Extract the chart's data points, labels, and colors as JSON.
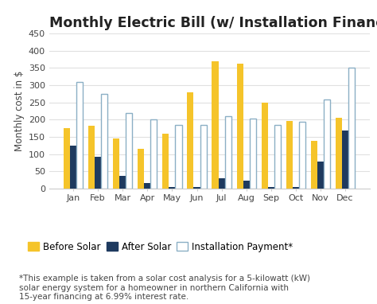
{
  "title": "Monthly Electric Bill (w/ Installation Financing)",
  "ylabel": "Monthly cost in $",
  "months": [
    "Jan",
    "Feb",
    "Mar",
    "Apr",
    "May",
    "Jun",
    "Jul",
    "Aug",
    "Sep",
    "Oct",
    "Nov",
    "Dec"
  ],
  "before_solar": [
    175,
    182,
    145,
    115,
    160,
    280,
    370,
    363,
    250,
    195,
    138,
    205
  ],
  "after_solar": [
    125,
    93,
    37,
    15,
    5,
    5,
    30,
    22,
    5,
    5,
    78,
    168
  ],
  "installation_payment": [
    308,
    275,
    218,
    200,
    185,
    185,
    210,
    203,
    185,
    193,
    258,
    350
  ],
  "color_before": "#F5C42A",
  "color_after": "#1E3A5F",
  "color_install_face": "#ffffff",
  "color_install_edge": "#8BAFC5",
  "footnote": "*This example is taken from a solar cost analysis for a 5-kilowatt (kW)\nsolar energy system for a homeowner in northern California with\n15-year financing at 6.99% interest rate.",
  "ylim": [
    0,
    450
  ],
  "yticks": [
    0,
    50,
    100,
    150,
    200,
    250,
    300,
    350,
    400,
    450
  ],
  "background_color": "#ffffff",
  "plot_bg_color": "#ffffff",
  "grid_color": "#e0e0e0",
  "title_fontsize": 12.5,
  "label_fontsize": 8.5,
  "tick_fontsize": 8,
  "legend_fontsize": 8.5,
  "footnote_fontsize": 7.5,
  "title_color": "#222222",
  "text_color": "#444444"
}
